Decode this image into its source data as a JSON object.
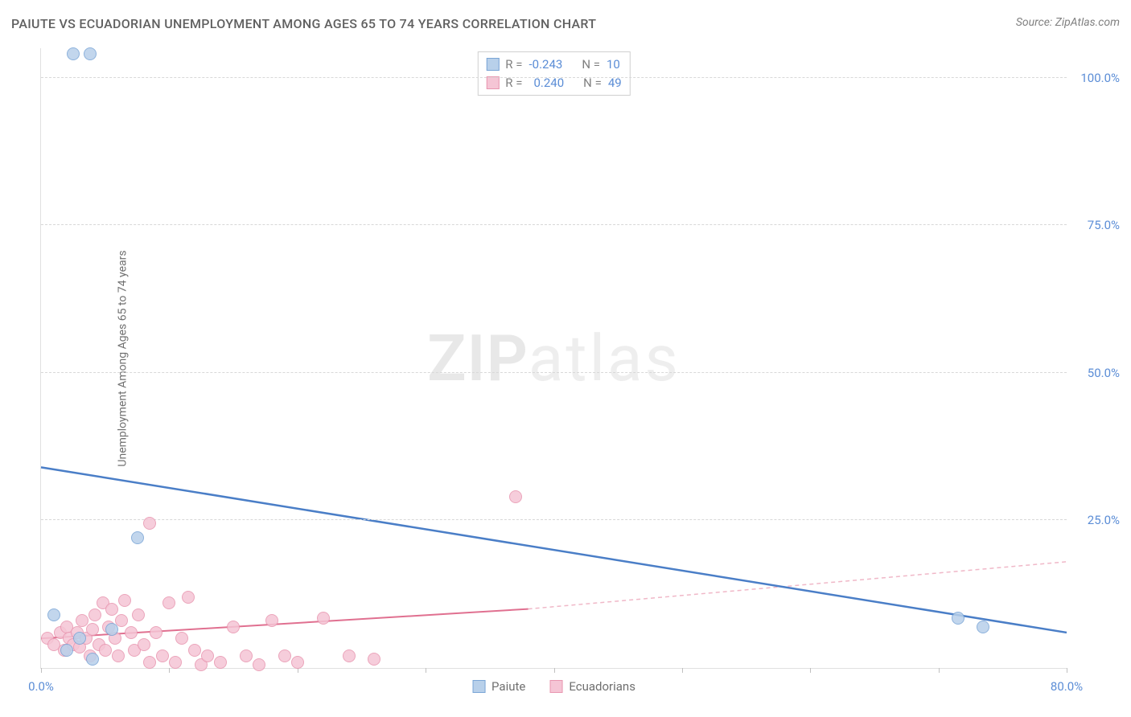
{
  "title": "PAIUTE VS ECUADORIAN UNEMPLOYMENT AMONG AGES 65 TO 74 YEARS CORRELATION CHART",
  "source": "Source: ZipAtlas.com",
  "ylabel": "Unemployment Among Ages 65 to 74 years",
  "watermark_zip": "ZIP",
  "watermark_atlas": "atlas",
  "chart": {
    "type": "scatter",
    "xlim": [
      0,
      80
    ],
    "ylim": [
      0,
      105
    ],
    "x_ticks": [
      0,
      10,
      20,
      30,
      40,
      50,
      60,
      70,
      80
    ],
    "x_tick_labels": {
      "0": "0.0%",
      "80": "80.0%"
    },
    "y_gridlines": [
      25,
      50,
      75,
      100
    ],
    "y_tick_labels": {
      "25": "25.0%",
      "50": "50.0%",
      "75": "75.0%",
      "100": "100.0%"
    },
    "background_color": "#ffffff",
    "grid_color": "#d8d8d8",
    "axis_color": "#e0e0e0"
  },
  "series": [
    {
      "name": "Paiute",
      "color_fill": "#b8d0ea",
      "color_stroke": "#7aa5d6",
      "point_radius": 8,
      "r_label": "R =",
      "r_value": "-0.243",
      "n_label": "N =",
      "n_value": "10",
      "trend": {
        "x1": 0,
        "y1": 34,
        "x2": 80,
        "y2": 6,
        "color": "#4a7ec7",
        "width": 2.5,
        "dash": "none"
      },
      "points": [
        {
          "x": 2.5,
          "y": 104
        },
        {
          "x": 3.8,
          "y": 104
        },
        {
          "x": 7.5,
          "y": 22
        },
        {
          "x": 1.0,
          "y": 9
        },
        {
          "x": 5.5,
          "y": 6.5
        },
        {
          "x": 4.0,
          "y": 1.5
        },
        {
          "x": 71.5,
          "y": 8.5
        },
        {
          "x": 73.5,
          "y": 7
        },
        {
          "x": 3.0,
          "y": 5
        },
        {
          "x": 2.0,
          "y": 3
        }
      ]
    },
    {
      "name": "Ecuadorians",
      "color_fill": "#f5c5d5",
      "color_stroke": "#e896b0",
      "point_radius": 8,
      "r_label": "R =",
      "r_value": "0.240",
      "n_label": "N =",
      "n_value": "49",
      "trend_solid": {
        "x1": 0,
        "y1": 5,
        "x2": 38,
        "y2": 10,
        "color": "#e07090",
        "width": 2,
        "dash": "none"
      },
      "trend_dash": {
        "x1": 38,
        "y1": 10,
        "x2": 80,
        "y2": 18,
        "color": "#f0b8c8",
        "width": 1.5,
        "dash": "5,4"
      },
      "points": [
        {
          "x": 8.5,
          "y": 24.5
        },
        {
          "x": 37,
          "y": 29
        },
        {
          "x": 0.5,
          "y": 5
        },
        {
          "x": 1.0,
          "y": 4
        },
        {
          "x": 1.5,
          "y": 6
        },
        {
          "x": 1.8,
          "y": 3
        },
        {
          "x": 2.0,
          "y": 7
        },
        {
          "x": 2.2,
          "y": 5
        },
        {
          "x": 2.5,
          "y": 4
        },
        {
          "x": 2.8,
          "y": 6
        },
        {
          "x": 3.0,
          "y": 3.5
        },
        {
          "x": 3.2,
          "y": 8
        },
        {
          "x": 3.5,
          "y": 5
        },
        {
          "x": 3.8,
          "y": 2
        },
        {
          "x": 4.0,
          "y": 6.5
        },
        {
          "x": 4.2,
          "y": 9
        },
        {
          "x": 4.5,
          "y": 4
        },
        {
          "x": 4.8,
          "y": 11
        },
        {
          "x": 5.0,
          "y": 3
        },
        {
          "x": 5.3,
          "y": 7
        },
        {
          "x": 5.5,
          "y": 10
        },
        {
          "x": 5.8,
          "y": 5
        },
        {
          "x": 6.0,
          "y": 2
        },
        {
          "x": 6.3,
          "y": 8
        },
        {
          "x": 6.5,
          "y": 11.5
        },
        {
          "x": 7.0,
          "y": 6
        },
        {
          "x": 7.3,
          "y": 3
        },
        {
          "x": 7.6,
          "y": 9
        },
        {
          "x": 8.0,
          "y": 4
        },
        {
          "x": 8.5,
          "y": 1
        },
        {
          "x": 9.0,
          "y": 6
        },
        {
          "x": 9.5,
          "y": 2
        },
        {
          "x": 10.0,
          "y": 11
        },
        {
          "x": 10.5,
          "y": 1
        },
        {
          "x": 11.0,
          "y": 5
        },
        {
          "x": 11.5,
          "y": 12
        },
        {
          "x": 12.0,
          "y": 3
        },
        {
          "x": 12.5,
          "y": 0.5
        },
        {
          "x": 13.0,
          "y": 2
        },
        {
          "x": 14.0,
          "y": 1
        },
        {
          "x": 15.0,
          "y": 7
        },
        {
          "x": 16.0,
          "y": 2
        },
        {
          "x": 17.0,
          "y": 0.5
        },
        {
          "x": 18.0,
          "y": 8
        },
        {
          "x": 19.0,
          "y": 2
        },
        {
          "x": 20.0,
          "y": 1
        },
        {
          "x": 22.0,
          "y": 8.5
        },
        {
          "x": 24.0,
          "y": 2
        },
        {
          "x": 26.0,
          "y": 1.5
        }
      ]
    }
  ],
  "legend_bottom": [
    {
      "label": "Paiute",
      "fill": "#b8d0ea",
      "stroke": "#7aa5d6"
    },
    {
      "label": "Ecuadorians",
      "fill": "#f5c5d5",
      "stroke": "#e896b0"
    }
  ]
}
